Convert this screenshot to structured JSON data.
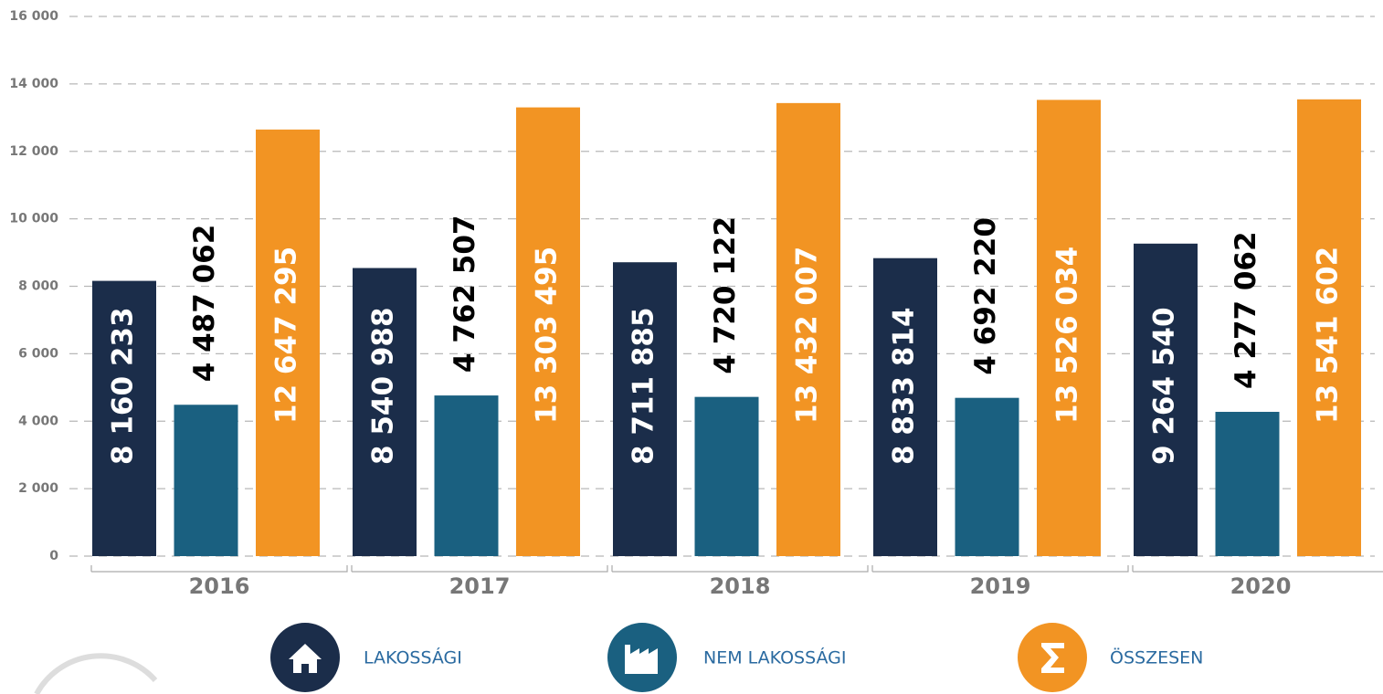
{
  "chart_data": {
    "type": "bar",
    "categories": [
      "2016",
      "2017",
      "2018",
      "2019",
      "2020"
    ],
    "series": [
      {
        "name": "LAKOSSÁGI",
        "color": "#1b2d4a",
        "values": [
          8160.233,
          8540.988,
          8711.885,
          8833.814,
          9264.54
        ],
        "value_labels": [
          "8 160 233",
          "8 540 988",
          "8 711 885",
          "8 833 814",
          "9 264 540"
        ]
      },
      {
        "name": "NEM LAKOSSÁGI",
        "color": "#1a6080",
        "values": [
          4487.062,
          4762.507,
          4720.122,
          4692.22,
          4277.062
        ],
        "value_labels": [
          "4 487 062",
          "4 762 507",
          "4 720 122",
          "4 692 220",
          "4 277 062"
        ]
      },
      {
        "name": "ÖSSZESEN",
        "color": "#f29423",
        "values": [
          12647.295,
          13303.495,
          13432.007,
          13526.034,
          13541.602
        ],
        "value_labels": [
          "12 647 295",
          "13 303 495",
          "13 432 007",
          "13 526 034",
          "13 541 602"
        ]
      }
    ],
    "ylim": [
      0,
      16000
    ],
    "yticks": [
      0,
      {
        "value": 2000,
        "label": "2 000"
      },
      {
        "value": 4000,
        "label": "4 000"
      },
      {
        "value": 6000,
        "label": "6 000"
      },
      {
        "value": 8000,
        "label": "8 000"
      },
      {
        "value": 10000,
        "label": "10 000"
      },
      {
        "value": 12000,
        "label": "12 000"
      },
      {
        "value": 14000,
        "label": "14 000"
      },
      {
        "value": 16000,
        "label": "16 000"
      }
    ],
    "grid": true
  }
}
